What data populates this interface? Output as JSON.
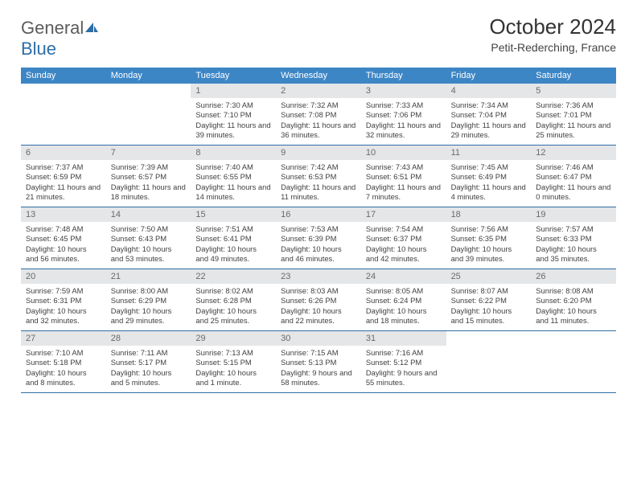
{
  "logo": {
    "part1": "General",
    "part2": "Blue"
  },
  "title": "October 2024",
  "subtitle": "Petit-Rederching, France",
  "colors": {
    "header_blue": "#3d86c6",
    "accent_blue": "#2e6da4",
    "num_bg": "#e4e6e8",
    "rule": "#2e6da4",
    "text": "#3b3b3b"
  },
  "dow": [
    "Sunday",
    "Monday",
    "Tuesday",
    "Wednesday",
    "Thursday",
    "Friday",
    "Saturday"
  ],
  "weeks": [
    [
      {
        "blank": true
      },
      {
        "blank": true
      },
      {
        "day": "1",
        "sunrise": "7:30 AM",
        "sunset": "7:10 PM",
        "daylight": "Daylight: 11 hours and 39 minutes."
      },
      {
        "day": "2",
        "sunrise": "7:32 AM",
        "sunset": "7:08 PM",
        "daylight": "Daylight: 11 hours and 36 minutes."
      },
      {
        "day": "3",
        "sunrise": "7:33 AM",
        "sunset": "7:06 PM",
        "daylight": "Daylight: 11 hours and 32 minutes."
      },
      {
        "day": "4",
        "sunrise": "7:34 AM",
        "sunset": "7:04 PM",
        "daylight": "Daylight: 11 hours and 29 minutes."
      },
      {
        "day": "5",
        "sunrise": "7:36 AM",
        "sunset": "7:01 PM",
        "daylight": "Daylight: 11 hours and 25 minutes."
      }
    ],
    [
      {
        "day": "6",
        "sunrise": "7:37 AM",
        "sunset": "6:59 PM",
        "daylight": "Daylight: 11 hours and 21 minutes."
      },
      {
        "day": "7",
        "sunrise": "7:39 AM",
        "sunset": "6:57 PM",
        "daylight": "Daylight: 11 hours and 18 minutes."
      },
      {
        "day": "8",
        "sunrise": "7:40 AM",
        "sunset": "6:55 PM",
        "daylight": "Daylight: 11 hours and 14 minutes."
      },
      {
        "day": "9",
        "sunrise": "7:42 AM",
        "sunset": "6:53 PM",
        "daylight": "Daylight: 11 hours and 11 minutes."
      },
      {
        "day": "10",
        "sunrise": "7:43 AM",
        "sunset": "6:51 PM",
        "daylight": "Daylight: 11 hours and 7 minutes."
      },
      {
        "day": "11",
        "sunrise": "7:45 AM",
        "sunset": "6:49 PM",
        "daylight": "Daylight: 11 hours and 4 minutes."
      },
      {
        "day": "12",
        "sunrise": "7:46 AM",
        "sunset": "6:47 PM",
        "daylight": "Daylight: 11 hours and 0 minutes."
      }
    ],
    [
      {
        "day": "13",
        "sunrise": "7:48 AM",
        "sunset": "6:45 PM",
        "daylight": "Daylight: 10 hours and 56 minutes."
      },
      {
        "day": "14",
        "sunrise": "7:50 AM",
        "sunset": "6:43 PM",
        "daylight": "Daylight: 10 hours and 53 minutes."
      },
      {
        "day": "15",
        "sunrise": "7:51 AM",
        "sunset": "6:41 PM",
        "daylight": "Daylight: 10 hours and 49 minutes."
      },
      {
        "day": "16",
        "sunrise": "7:53 AM",
        "sunset": "6:39 PM",
        "daylight": "Daylight: 10 hours and 46 minutes."
      },
      {
        "day": "17",
        "sunrise": "7:54 AM",
        "sunset": "6:37 PM",
        "daylight": "Daylight: 10 hours and 42 minutes."
      },
      {
        "day": "18",
        "sunrise": "7:56 AM",
        "sunset": "6:35 PM",
        "daylight": "Daylight: 10 hours and 39 minutes."
      },
      {
        "day": "19",
        "sunrise": "7:57 AM",
        "sunset": "6:33 PM",
        "daylight": "Daylight: 10 hours and 35 minutes."
      }
    ],
    [
      {
        "day": "20",
        "sunrise": "7:59 AM",
        "sunset": "6:31 PM",
        "daylight": "Daylight: 10 hours and 32 minutes."
      },
      {
        "day": "21",
        "sunrise": "8:00 AM",
        "sunset": "6:29 PM",
        "daylight": "Daylight: 10 hours and 29 minutes."
      },
      {
        "day": "22",
        "sunrise": "8:02 AM",
        "sunset": "6:28 PM",
        "daylight": "Daylight: 10 hours and 25 minutes."
      },
      {
        "day": "23",
        "sunrise": "8:03 AM",
        "sunset": "6:26 PM",
        "daylight": "Daylight: 10 hours and 22 minutes."
      },
      {
        "day": "24",
        "sunrise": "8:05 AM",
        "sunset": "6:24 PM",
        "daylight": "Daylight: 10 hours and 18 minutes."
      },
      {
        "day": "25",
        "sunrise": "8:07 AM",
        "sunset": "6:22 PM",
        "daylight": "Daylight: 10 hours and 15 minutes."
      },
      {
        "day": "26",
        "sunrise": "8:08 AM",
        "sunset": "6:20 PM",
        "daylight": "Daylight: 10 hours and 11 minutes."
      }
    ],
    [
      {
        "day": "27",
        "sunrise": "7:10 AM",
        "sunset": "5:18 PM",
        "daylight": "Daylight: 10 hours and 8 minutes."
      },
      {
        "day": "28",
        "sunrise": "7:11 AM",
        "sunset": "5:17 PM",
        "daylight": "Daylight: 10 hours and 5 minutes."
      },
      {
        "day": "29",
        "sunrise": "7:13 AM",
        "sunset": "5:15 PM",
        "daylight": "Daylight: 10 hours and 1 minute."
      },
      {
        "day": "30",
        "sunrise": "7:15 AM",
        "sunset": "5:13 PM",
        "daylight": "Daylight: 9 hours and 58 minutes."
      },
      {
        "day": "31",
        "sunrise": "7:16 AM",
        "sunset": "5:12 PM",
        "daylight": "Daylight: 9 hours and 55 minutes."
      },
      {
        "blank": true
      },
      {
        "blank": true
      }
    ]
  ],
  "sunrise_prefix": "Sunrise: ",
  "sunset_prefix": "Sunset: "
}
